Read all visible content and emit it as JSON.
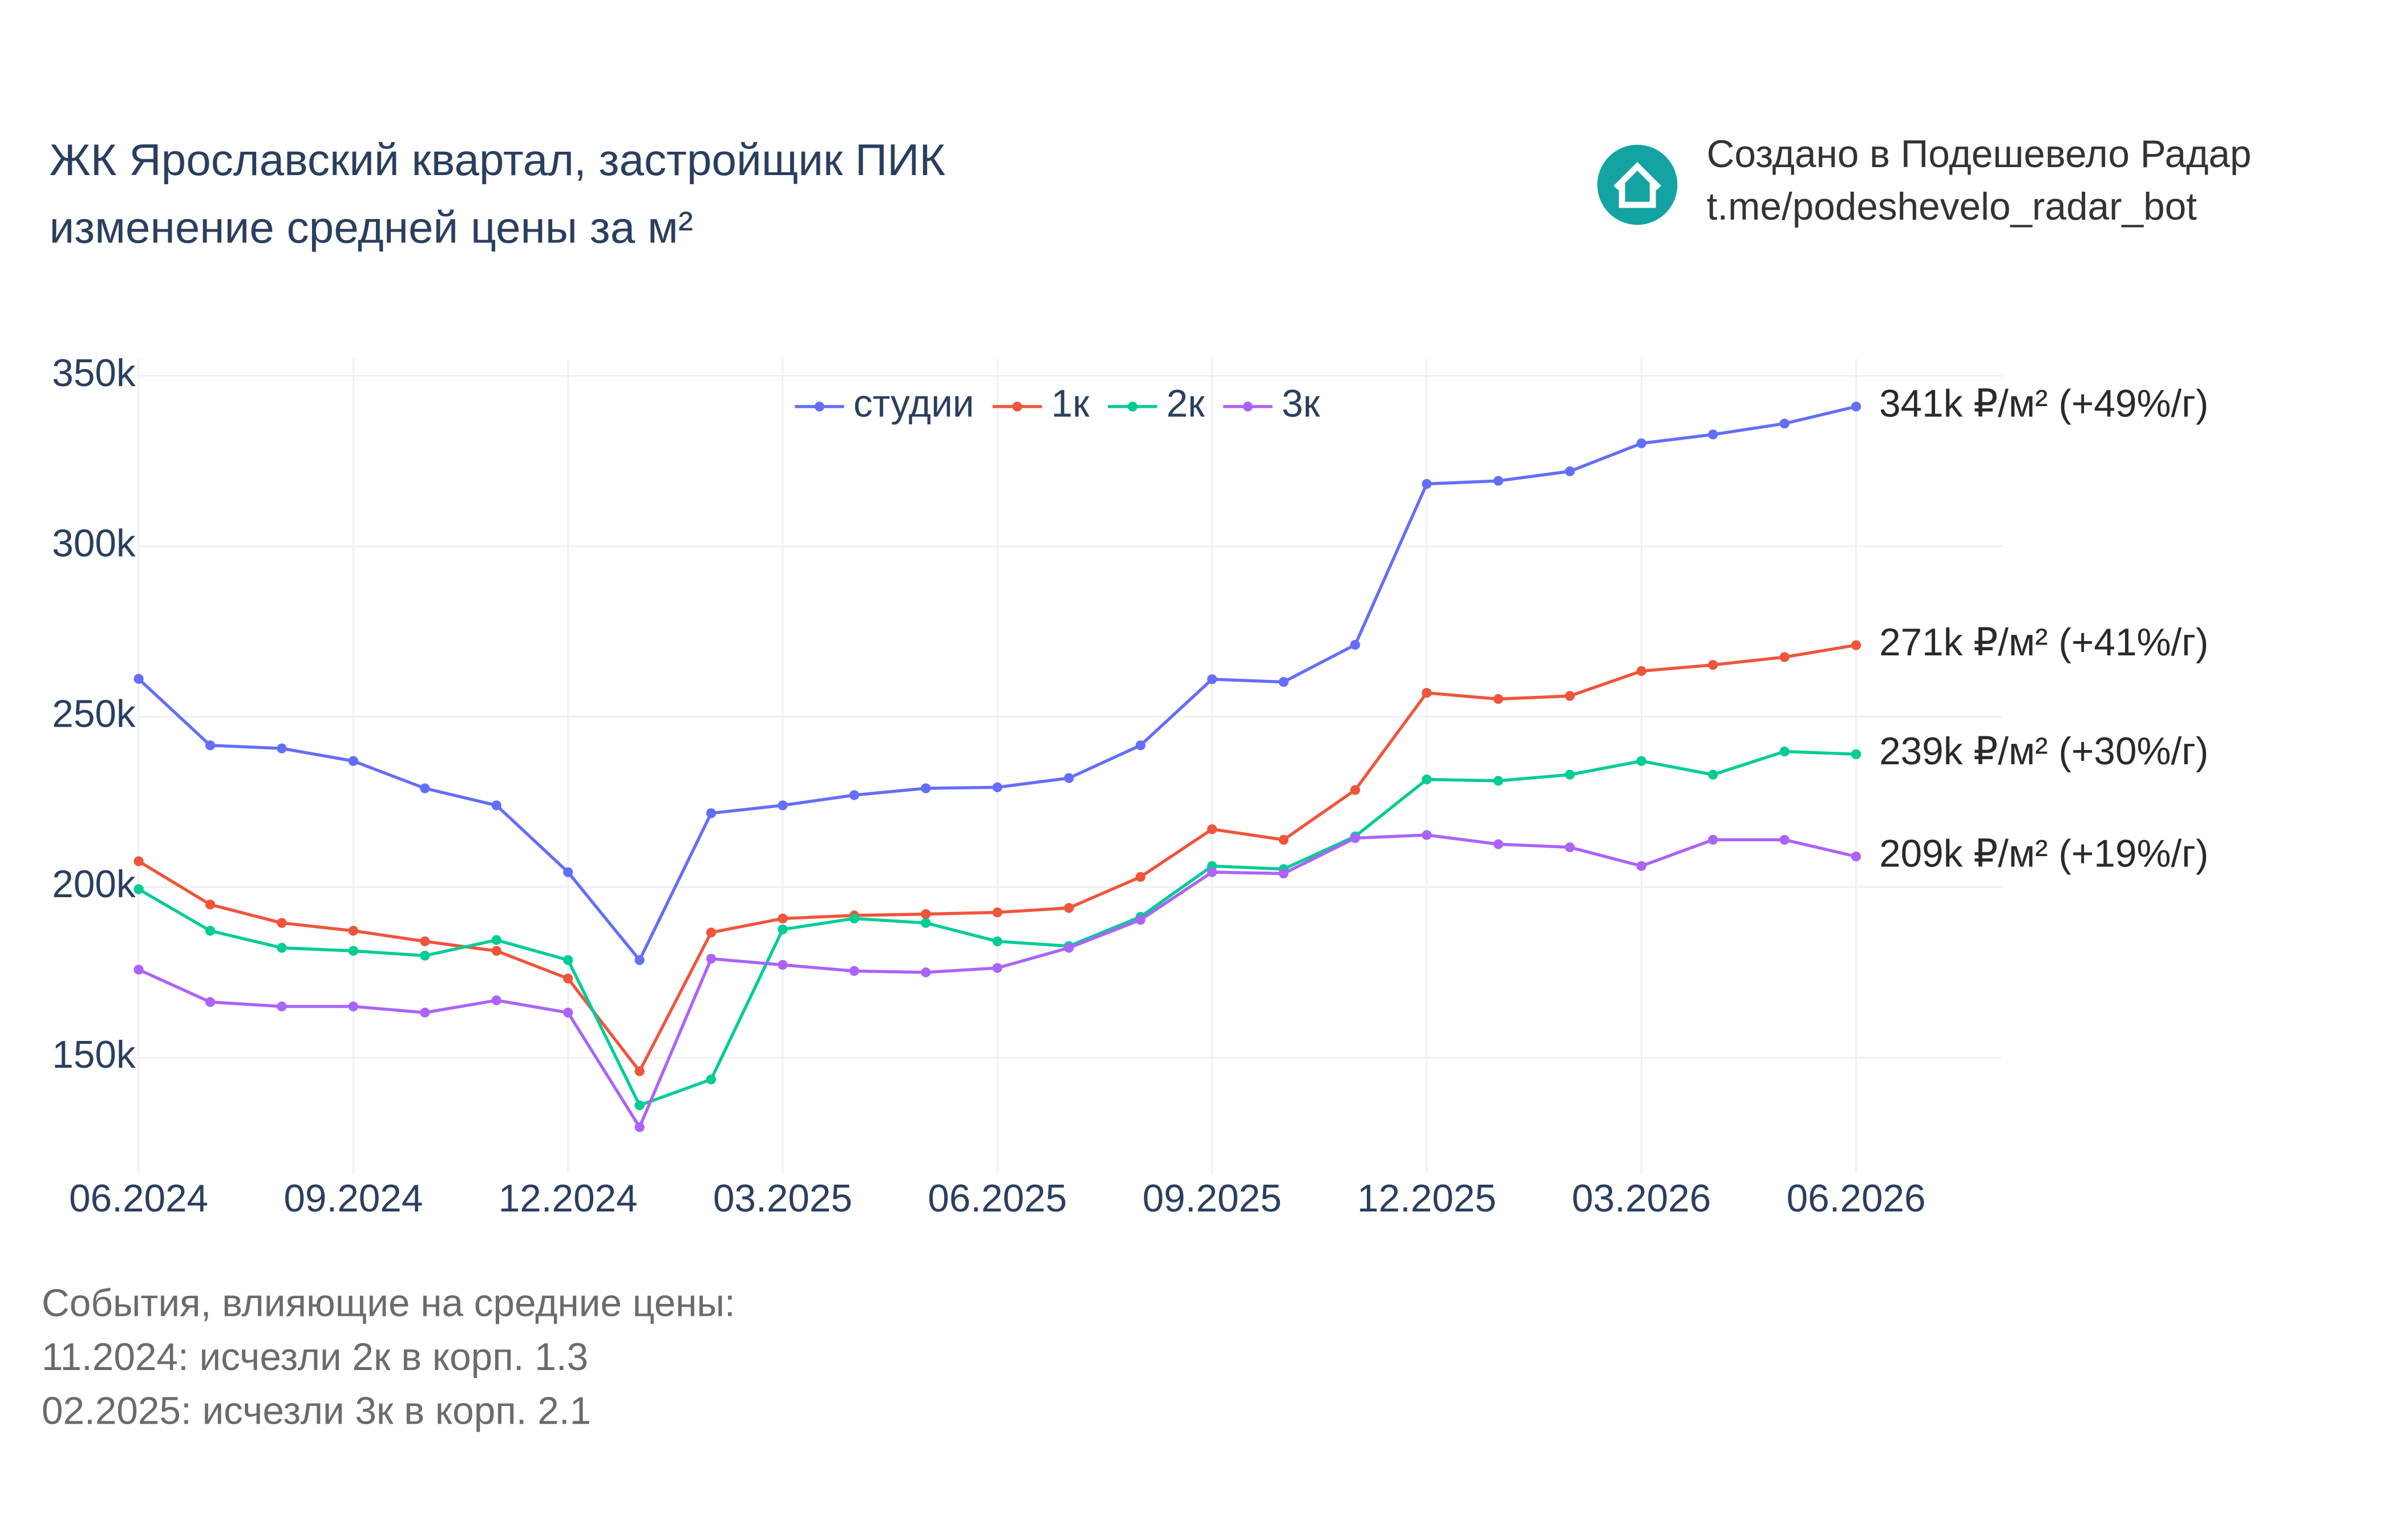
{
  "chart_data": {
    "type": "line",
    "title": "ЖК Ярославский квартал, застройщик ПИК",
    "subtitle": "изменение средней цены за м²",
    "credit": "Создано в Подешевело Радар",
    "credit_link": "t.me/podeshevelo_radar_bot",
    "notes_title": "События, влияющие на средние цены:",
    "notes": [
      "11.2024: исчезли 2к в корп. 1.3",
      "02.2025: исчезли 3к в корп. 2.1"
    ],
    "categories": [
      "06.2024",
      null,
      null,
      "09.2024",
      null,
      null,
      "12.2024",
      null,
      null,
      "03.2025",
      null,
      null,
      "06.2025",
      null,
      null,
      "09.2025",
      null,
      null,
      "12.2025",
      null,
      null,
      "03.2026",
      null,
      null,
      "06.2026"
    ],
    "ylim": [
      116000,
      355000
    ],
    "yticks": [
      {
        "value": 150000,
        "label": "150k"
      },
      {
        "value": 200000,
        "label": "200k"
      },
      {
        "value": 250000,
        "label": "250k"
      },
      {
        "value": 300000,
        "label": "300k"
      },
      {
        "value": 350000,
        "label": "350k"
      }
    ],
    "grid": true,
    "legend": "top",
    "series": [
      {
        "name": "студии",
        "color": "#636efa",
        "annotation": "341k ₽/м² (+49%/г)",
        "values": [
          261100,
          241600,
          240700,
          237000,
          229000,
          224000,
          204400,
          178600,
          221700,
          224000,
          227000,
          229000,
          229300,
          232000,
          241600,
          261000,
          260200,
          271100,
          318300,
          319200,
          322000,
          330200,
          332800,
          336000,
          341000
        ]
      },
      {
        "name": "1к",
        "color": "#ef553b",
        "annotation": "271k ₽/м² (+41%/г)",
        "values": [
          207600,
          194900,
          189500,
          187200,
          184100,
          181300,
          173200,
          146000,
          186700,
          190800,
          191700,
          192100,
          192600,
          193900,
          203000,
          217000,
          213900,
          228500,
          257000,
          255200,
          256100,
          263400,
          265200,
          267500,
          271000
        ]
      },
      {
        "name": "2к",
        "color": "#00cc96",
        "annotation": "239k ₽/м² (+30%/г)",
        "values": [
          199400,
          187200,
          182200,
          181300,
          179900,
          184500,
          178600,
          136000,
          143600,
          187600,
          190800,
          189500,
          184100,
          182700,
          191300,
          206200,
          205300,
          214900,
          231600,
          231200,
          233000,
          237000,
          233000,
          239800,
          239000
        ]
      },
      {
        "name": "3к",
        "color": "#ab63fa",
        "annotation": "209k ₽/м² (+19%/г)",
        "values": [
          175800,
          166300,
          165000,
          165000,
          163200,
          166800,
          163200,
          129600,
          179000,
          177200,
          175400,
          175000,
          176300,
          182200,
          190400,
          204400,
          204000,
          214400,
          215300,
          212600,
          211700,
          206200,
          213900,
          213900,
          209000
        ]
      }
    ]
  }
}
